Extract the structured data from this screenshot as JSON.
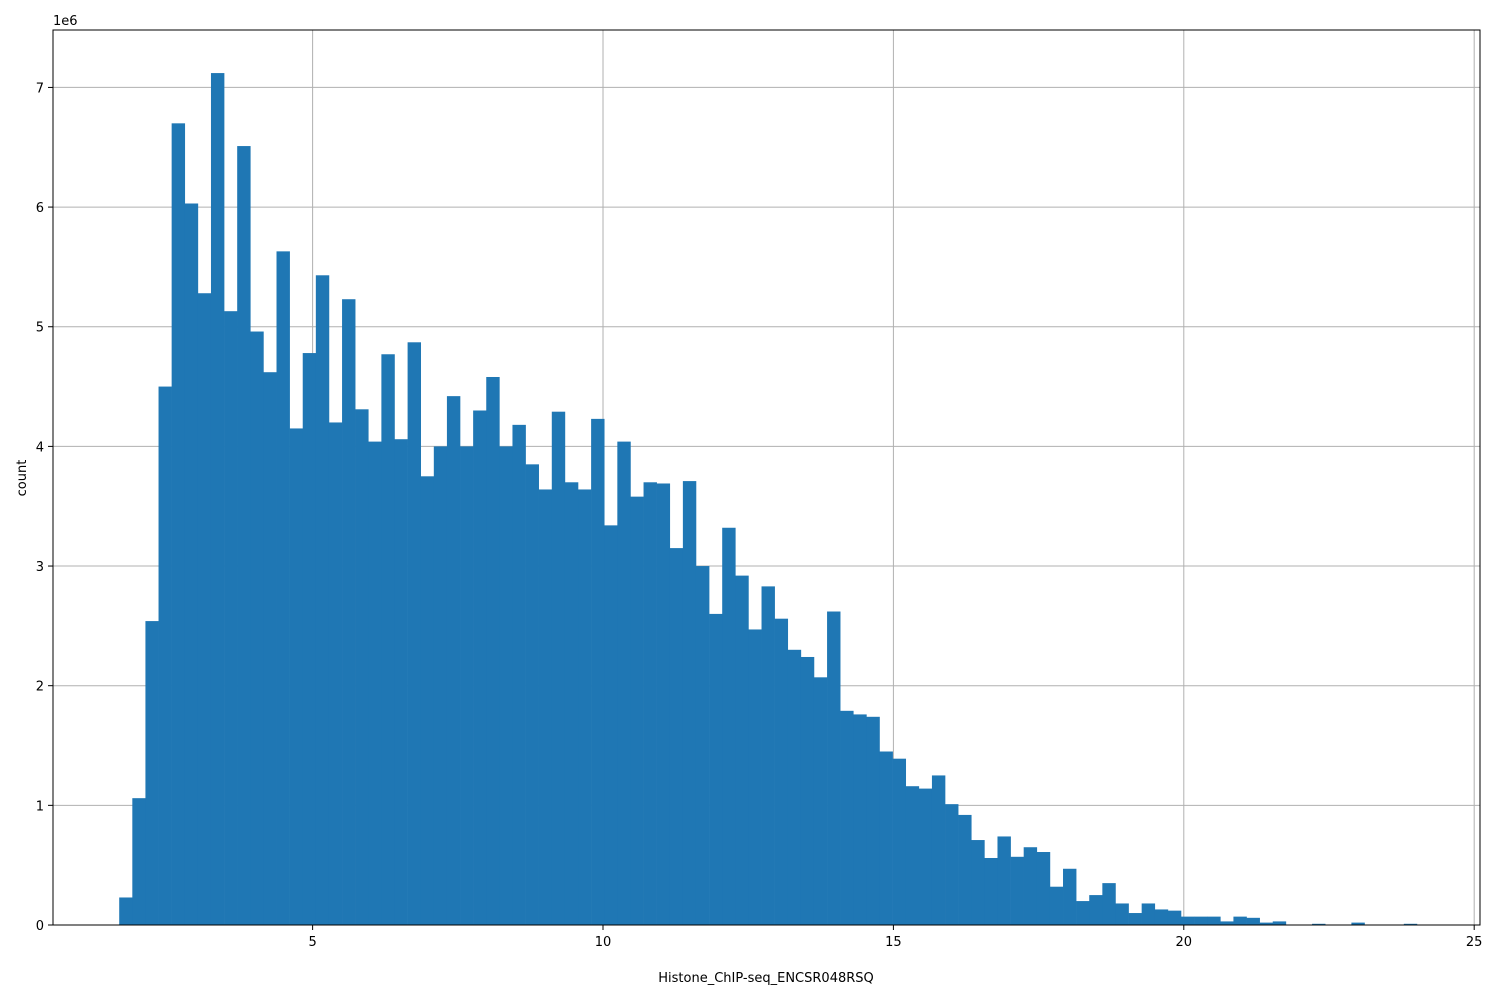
{
  "chart_data": {
    "type": "bar",
    "title": "",
    "xlabel": "Histone_ChIP-seq_ENCSR048RSQ",
    "ylabel": "count",
    "y_offset_label": "1e6",
    "xlim": [
      0.53,
      25.1
    ],
    "ylim": [
      0,
      7.48
    ],
    "y_unit_multiplier": 1000000,
    "grid": true,
    "bar_color": "#1f77b4",
    "bin_start": 1.67,
    "bin_width": 0.2257,
    "x_ticks": [
      5,
      10,
      15,
      20,
      25
    ],
    "y_ticks": [
      0,
      1,
      2,
      3,
      4,
      5,
      6,
      7
    ],
    "values": [
      0.23,
      1.06,
      2.54,
      4.5,
      6.7,
      6.03,
      5.28,
      7.12,
      5.13,
      6.51,
      4.96,
      4.62,
      5.63,
      4.15,
      4.78,
      5.43,
      4.2,
      5.23,
      4.31,
      4.04,
      4.77,
      4.06,
      4.87,
      3.75,
      4.0,
      4.42,
      4.0,
      4.3,
      4.58,
      4.0,
      4.18,
      3.85,
      3.64,
      4.29,
      3.7,
      3.64,
      4.23,
      3.34,
      4.04,
      3.58,
      3.7,
      3.69,
      3.15,
      3.71,
      3.0,
      2.6,
      3.32,
      2.92,
      2.47,
      2.83,
      2.56,
      2.3,
      2.24,
      2.07,
      2.62,
      1.79,
      1.76,
      1.74,
      1.45,
      1.39,
      1.16,
      1.14,
      1.25,
      1.01,
      0.92,
      0.71,
      0.56,
      0.74,
      0.57,
      0.65,
      0.61,
      0.32,
      0.47,
      0.2,
      0.25,
      0.35,
      0.18,
      0.1,
      0.18,
      0.13,
      0.12,
      0.07,
      0.07,
      0.07,
      0.03,
      0.07,
      0.06,
      0.02,
      0.03,
      0.0,
      0.0,
      0.01,
      0.0,
      0.0,
      0.02,
      0.0,
      0.0,
      0.0,
      0.01
    ]
  },
  "labels": {
    "xlabel": "Histone_ChIP-seq_ENCSR048RSQ",
    "ylabel": "count",
    "offset": "1e6"
  }
}
